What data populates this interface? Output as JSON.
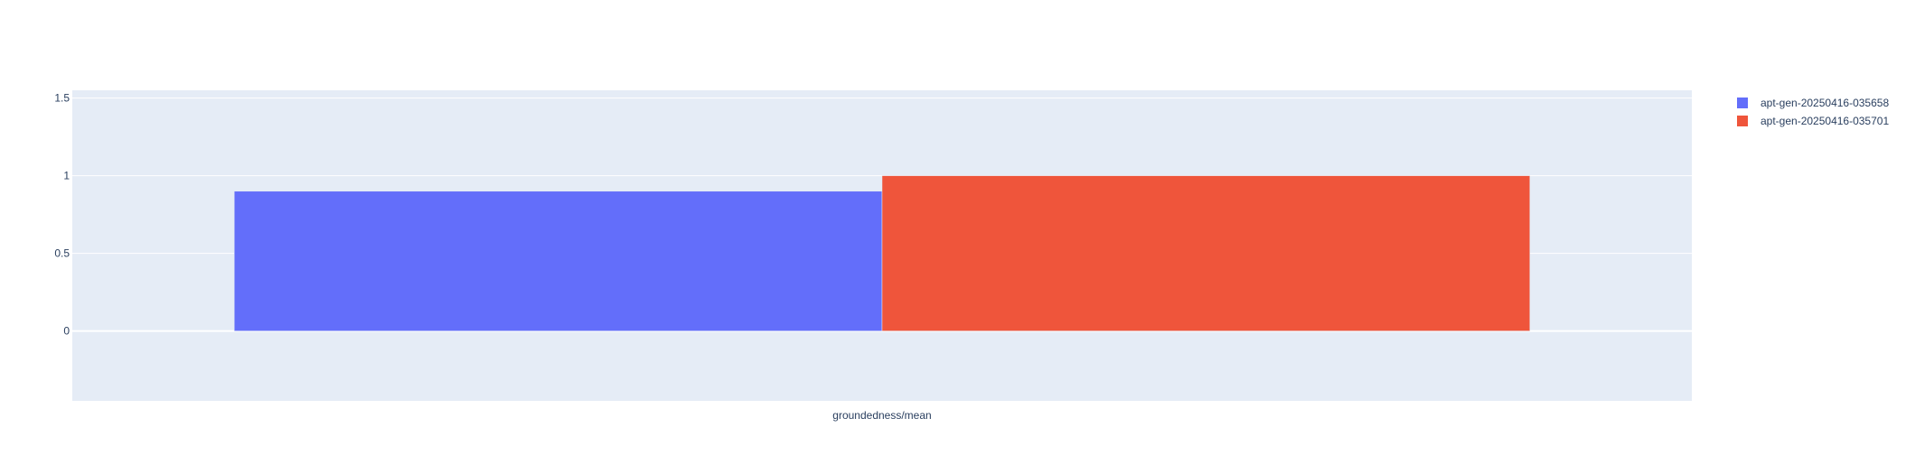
{
  "chart_data": {
    "type": "bar",
    "categories": [
      "groundedness/mean"
    ],
    "series": [
      {
        "name": "apt-gen-20250416-035658",
        "values": [
          0.9
        ],
        "color": "#636efa"
      },
      {
        "name": "apt-gen-20250416-035701",
        "values": [
          1.0
        ],
        "color": "#ef553b"
      }
    ],
    "ylim": [
      -0.45,
      1.55
    ],
    "yticks": [
      0,
      0.5,
      1,
      1.5
    ],
    "ytick_labels": [
      "0",
      "0.5",
      "1",
      "1.5"
    ],
    "grid": true,
    "legend_position": "top-right",
    "plot_background": "#e5ecf6",
    "gridline_color": "#ffffff",
    "text_color": "#2a3f5f"
  }
}
